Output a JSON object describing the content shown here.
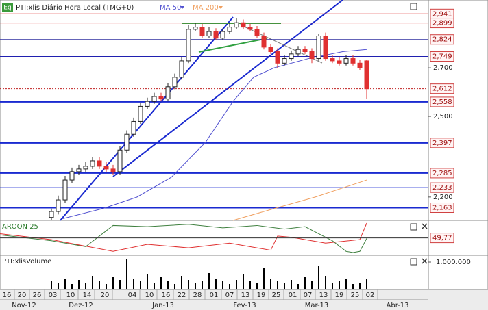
{
  "chart_data": [
    {
      "type": "candlestick",
      "badge": "Eq",
      "title": "PTI:xlis Diário Hora Local (TMG+0)",
      "log": true,
      "ylim": [
        2120,
        3000
      ],
      "xlim": [
        -7.5,
        55
      ],
      "yticks": [
        {
          "value": 2700,
          "label": "2,700"
        },
        {
          "value": 2500,
          "label": "2,500"
        },
        {
          "value": 2200,
          "label": "2,200"
        }
      ],
      "up_color": "#ffffff",
      "down_color": "#e03030",
      "open": [
        2130,
        2150,
        2190,
        2260,
        2290,
        2300,
        2310,
        2330,
        2310,
        2300,
        2290,
        2370,
        2430,
        2480,
        2540,
        2560,
        2580,
        2570,
        2620,
        2660,
        2730,
        2870,
        2880,
        2840,
        2860,
        2830,
        2860,
        2880,
        2900,
        2880,
        2870,
        2840,
        2790,
        2770,
        2720,
        2740,
        2760,
        2780,
        2770,
        2740,
        2840,
        2740,
        2730,
        2720,
        2740,
        2720,
        2730
      ],
      "high": [
        2160,
        2205,
        2275,
        2305,
        2315,
        2325,
        2345,
        2345,
        2325,
        2315,
        2385,
        2445,
        2495,
        2555,
        2575,
        2595,
        2595,
        2635,
        2675,
        2745,
        2890,
        2900,
        2895,
        2880,
        2875,
        2875,
        2900,
        2920,
        2915,
        2895,
        2885,
        2855,
        2805,
        2785,
        2755,
        2775,
        2795,
        2795,
        2785,
        2850,
        2855,
        2755,
        2745,
        2755,
        2755,
        2735,
        2735
      ],
      "low": [
        2120,
        2140,
        2180,
        2250,
        2280,
        2290,
        2300,
        2300,
        2290,
        2280,
        2280,
        2360,
        2420,
        2470,
        2530,
        2550,
        2560,
        2560,
        2610,
        2650,
        2720,
        2860,
        2830,
        2830,
        2820,
        2820,
        2850,
        2870,
        2870,
        2860,
        2830,
        2780,
        2760,
        2700,
        2710,
        2730,
        2750,
        2760,
        2720,
        2730,
        2730,
        2720,
        2710,
        2710,
        2710,
        2690,
        2570
      ],
      "close": [
        2150,
        2190,
        2260,
        2290,
        2300,
        2310,
        2330,
        2310,
        2300,
        2290,
        2370,
        2430,
        2480,
        2540,
        2560,
        2580,
        2570,
        2620,
        2660,
        2730,
        2870,
        2880,
        2840,
        2860,
        2830,
        2860,
        2880,
        2900,
        2880,
        2870,
        2840,
        2790,
        2770,
        2720,
        2740,
        2760,
        2780,
        2770,
        2740,
        2840,
        2740,
        2730,
        2720,
        2740,
        2720,
        2700,
        2612
      ],
      "overlays": [
        {
          "name": "MA 50",
          "color": "#5050d0",
          "x": [
            1.5,
            7.5,
            12.5,
            17.5,
            22.5,
            26.5,
            29.5,
            32.5,
            37.5,
            42.5,
            46
          ],
          "values": [
            2125,
            2160,
            2200,
            2270,
            2400,
            2560,
            2660,
            2700,
            2740,
            2770,
            2780
          ]
        },
        {
          "name": "MA 200",
          "color": "#f0a060",
          "x": [
            26.5,
            32.5,
            38.5,
            46
          ],
          "values": [
            2120,
            2160,
            2200,
            2260
          ]
        }
      ],
      "levels": [
        {
          "value": 2941,
          "label": "2,941",
          "color": "#e03030",
          "width": 1
        },
        {
          "value": 2899,
          "label": "2,899",
          "color": "#e03030",
          "width": 1
        },
        {
          "value": 2824,
          "label": "2,824",
          "color": "#3030a0",
          "width": 1
        },
        {
          "value": 2749,
          "label": "2,749",
          "color": "#2020b0",
          "width": 1
        },
        {
          "value": 2612,
          "label": "2,612",
          "color": "#c02020",
          "width": 1,
          "dotted": true
        },
        {
          "value": 2558,
          "label": "2,558",
          "color": "#1a2ad0",
          "width": 2
        },
        {
          "value": 2397,
          "label": "2,397",
          "color": "#1a2ad0",
          "width": 2
        },
        {
          "value": 2285,
          "label": "2,285",
          "color": "#1a2ad0",
          "width": 2
        },
        {
          "value": 2233,
          "label": "2,233",
          "color": "#1a2ad0",
          "width": 1
        },
        {
          "value": 2163,
          "label": "2,163",
          "color": "#1a2ad0",
          "width": 2
        }
      ]
    },
    {
      "type": "line",
      "title": "AROON 25",
      "ylim": [
        0,
        100
      ],
      "xlim": [
        -7.5,
        55
      ],
      "readout": {
        "value": 49.77,
        "label": "49,77"
      },
      "series": [
        {
          "color": "#408040",
          "x": [
            -7.5,
            0,
            5,
            9,
            14,
            20,
            25,
            30,
            34,
            37,
            41,
            43,
            44,
            45,
            46
          ],
          "values": [
            60,
            40,
            20,
            92,
            88,
            96,
            84,
            92,
            80,
            88,
            40,
            4,
            0,
            4,
            48
          ]
        },
        {
          "color": "#e03030",
          "x": [
            -7.5,
            0,
            9,
            14,
            20,
            26,
            32,
            33,
            35,
            40,
            45,
            46
          ],
          "values": [
            64,
            44,
            4,
            28,
            16,
            32,
            8,
            56,
            52,
            32,
            44,
            100
          ]
        }
      ]
    },
    {
      "type": "bar",
      "title": "PTI:xlisVolume",
      "ylim": [
        0,
        1250000
      ],
      "xlim": [
        -7.5,
        55
      ],
      "color": "#000000",
      "yticks": [
        {
          "value": 1000000,
          "label": "1.000.000"
        }
      ],
      "values": [
        300000,
        250000,
        400000,
        200000,
        350000,
        250000,
        500000,
        300000,
        200000,
        450000,
        350000,
        1100000,
        400000,
        300000,
        550000,
        250000,
        450000,
        300000,
        200000,
        500000,
        350000,
        250000,
        300000,
        600000,
        400000,
        300000,
        200000,
        350000,
        550000,
        300000,
        250000,
        800000,
        400000,
        300000,
        250000,
        350000,
        200000,
        450000,
        300000,
        850000,
        500000,
        250000,
        300000,
        400000,
        200000,
        250000,
        400000
      ],
      "xticks": [
        {
          "value": -6.5,
          "label": "16"
        },
        {
          "value": -4.3,
          "label": "20"
        },
        {
          "value": -2.1,
          "label": "26"
        },
        {
          "value": 0.2,
          "label": "03"
        },
        {
          "value": 2.8,
          "label": "10"
        },
        {
          "value": 5.2,
          "label": "14"
        },
        {
          "value": 7.8,
          "label": "20"
        },
        {
          "value": 11.8,
          "label": "04"
        },
        {
          "value": 14.3,
          "label": "10"
        },
        {
          "value": 16.7,
          "label": "16"
        },
        {
          "value": 19,
          "label": "22"
        },
        {
          "value": 21.3,
          "label": "28"
        },
        {
          "value": 23.7,
          "label": "01"
        },
        {
          "value": 26,
          "label": "07"
        },
        {
          "value": 28.3,
          "label": "13"
        },
        {
          "value": 30.6,
          "label": "19"
        },
        {
          "value": 32.8,
          "label": "25"
        },
        {
          "value": 35.2,
          "label": "01"
        },
        {
          "value": 37.4,
          "label": "07"
        },
        {
          "value": 39.7,
          "label": "13"
        },
        {
          "value": 42,
          "label": "19"
        },
        {
          "value": 44.3,
          "label": "25"
        },
        {
          "value": 46.5,
          "label": "02"
        }
      ],
      "months": [
        {
          "value": -4,
          "label": "Nov-12"
        },
        {
          "value": 4.3,
          "label": "Dez-12"
        },
        {
          "value": 16.3,
          "label": "Jan-13"
        },
        {
          "value": 28.2,
          "label": "Fev-13"
        },
        {
          "value": 38.7,
          "label": "Mar-13"
        },
        {
          "value": 50.5,
          "label": "Abr-13"
        }
      ]
    }
  ]
}
